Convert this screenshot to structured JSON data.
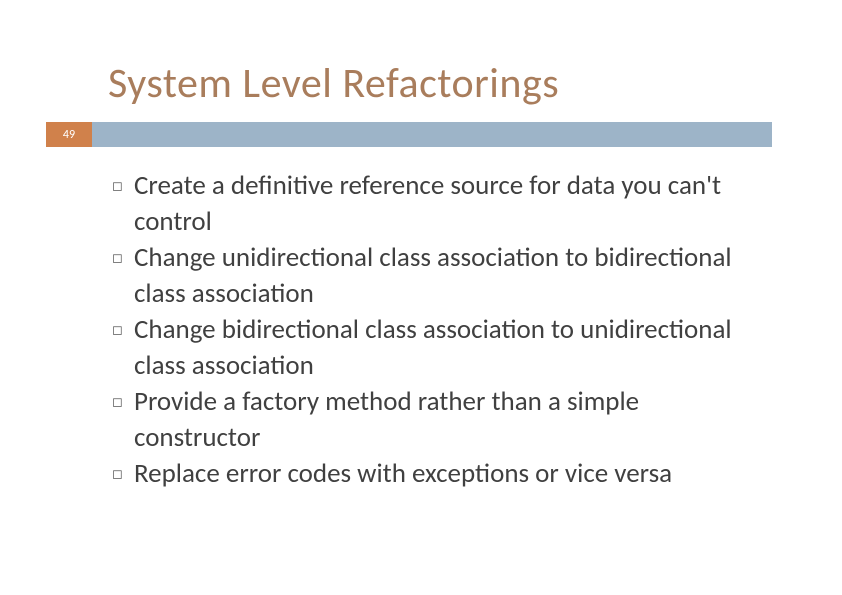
{
  "title": {
    "text": "System Level Refactorings",
    "color": "#a97d5c",
    "fontsize": 42
  },
  "page_number": "49",
  "page_badge_bg": "#d0814b",
  "header_strip_bg": "#9db4c8",
  "body_text_color": "#404040",
  "bullets": [
    {
      "text": "Create a definitive reference source for data you can't control"
    },
    {
      "text": "Change unidirectional class association to bidirectional class association"
    },
    {
      "text": "Change bidirectional class association to unidirectional class association"
    },
    {
      "text": "Provide a factory method rather than a simple constructor"
    },
    {
      "text": "Replace error codes with exceptions or vice versa"
    }
  ]
}
